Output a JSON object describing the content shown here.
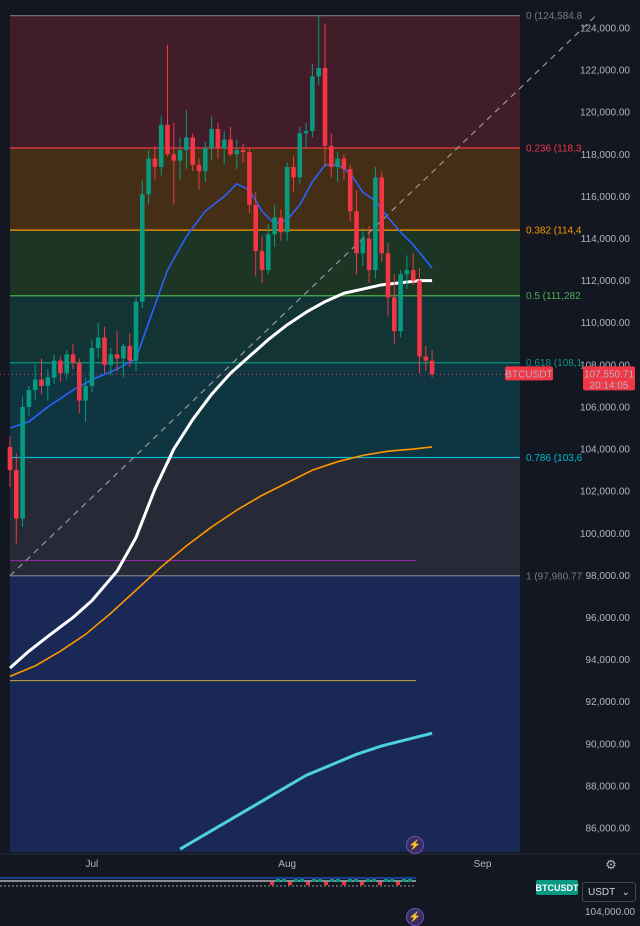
{
  "symbol": "BTCUSDT",
  "currency": "USDT",
  "last_price": "107,550.71",
  "countdown": "20:14:05",
  "bottom_price_label": "104,000.00",
  "colors": {
    "background": "#131722",
    "up": "#089981",
    "down": "#f23645",
    "ema_fast": "#2962ff",
    "ema_mid": "#ffffff",
    "ema_slow": "#ff9800",
    "ema_long": "#4dd0e1"
  },
  "icons": [
    "lightning-icon",
    "settings-gear-icon",
    "chevron-down-icon"
  ],
  "chart_data": {
    "type": "candlestick",
    "y_axis": {
      "min": 85000,
      "max": 125000,
      "ticks": [
        86000,
        88000,
        90000,
        92000,
        94000,
        96000,
        98000,
        100000,
        102000,
        104000,
        106000,
        108000,
        110000,
        112000,
        114000,
        116000,
        118000,
        120000,
        122000,
        124000
      ],
      "tick_labels": [
        "86,000.00",
        "88,000.00",
        "90,000.00",
        "92,000.00",
        "94,000.00",
        "96,000.00",
        "98,000.00",
        "100,000.00",
        "102,000.00",
        "104,000.00",
        "106,000.00",
        "108,000.00",
        "110,000.00",
        "112,000.00",
        "114,000.00",
        "116,000.00",
        "118,000.00",
        "120,000.00",
        "122,000.00",
        "124,000.00"
      ]
    },
    "x_axis": {
      "labels": [
        {
          "text": "Jul",
          "index": 13
        },
        {
          "text": "Aug",
          "index": 44
        },
        {
          "text": "Sep",
          "index": 75
        }
      ],
      "bars": 77
    },
    "fib_levels": [
      {
        "label": "0 (124,584.8",
        "price": 124584.8,
        "color": "#787b86",
        "fill": "#4a1f2a"
      },
      {
        "label": "0.236 (118,3",
        "price": 118300,
        "color": "#f23645",
        "fill": "#4d3414"
      },
      {
        "label": "0.382 (114,4",
        "price": 114400,
        "color": "#ff9800",
        "fill": "#1f3b24"
      },
      {
        "label": "0.5 (111,282",
        "price": 111282,
        "color": "#4caf50",
        "fill": "#143a37"
      },
      {
        "label": "0.618 (108,1",
        "price": 108100,
        "color": "#089981",
        "fill": "#0f3b45"
      },
      {
        "label": "0.786 (103,6",
        "price": 103600,
        "color": "#00bcd4",
        "fill": "#2a2e39"
      },
      {
        "label": "1 (97,980.77",
        "price": 97980.77,
        "color": "#787b86",
        "fill": "#1c2b5e"
      }
    ],
    "extra_lines": [
      {
        "price": 98700,
        "color": "#9c27b0"
      },
      {
        "price": 93000,
        "color": "#c8a84b"
      }
    ],
    "trend_line": {
      "from": [
        0,
        97981
      ],
      "to": [
        93,
        124585
      ],
      "color": "#9598a1"
    },
    "ohlc": [
      [
        104100,
        104600,
        102200,
        103000
      ],
      [
        103000,
        103800,
        99500,
        100700
      ],
      [
        100700,
        106500,
        100300,
        106000
      ],
      [
        106000,
        107000,
        105600,
        106800
      ],
      [
        106800,
        108000,
        106300,
        107300
      ],
      [
        107300,
        108300,
        106600,
        107000
      ],
      [
        107000,
        107800,
        106300,
        107400
      ],
      [
        107400,
        108500,
        107100,
        108200
      ],
      [
        108200,
        108400,
        107200,
        107600
      ],
      [
        107600,
        108700,
        107300,
        108500
      ],
      [
        108500,
        109000,
        107800,
        108100
      ],
      [
        108100,
        108300,
        105700,
        106300
      ],
      [
        106300,
        107400,
        105300,
        107000
      ],
      [
        107000,
        109200,
        106700,
        108800
      ],
      [
        108800,
        110000,
        108300,
        109300
      ],
      [
        109300,
        109800,
        107600,
        108000
      ],
      [
        108000,
        108800,
        107500,
        108500
      ],
      [
        108500,
        109600,
        107700,
        108300
      ],
      [
        108300,
        109000,
        107400,
        108900
      ],
      [
        108900,
        109500,
        107900,
        108200
      ],
      [
        108200,
        111200,
        107700,
        111000
      ],
      [
        111000,
        116800,
        110700,
        116100
      ],
      [
        116100,
        118200,
        115600,
        117800
      ],
      [
        117800,
        118400,
        116800,
        117400
      ],
      [
        117400,
        119800,
        117000,
        119400
      ],
      [
        119400,
        123200,
        117900,
        118000
      ],
      [
        118000,
        119500,
        115600,
        117700
      ],
      [
        117700,
        118800,
        116800,
        118200
      ],
      [
        118200,
        120100,
        117300,
        118800
      ],
      [
        118800,
        119000,
        117200,
        117500
      ],
      [
        117500,
        117800,
        116300,
        117200
      ],
      [
        117200,
        118600,
        116700,
        118300
      ],
      [
        118300,
        119800,
        117700,
        119200
      ],
      [
        119200,
        119500,
        117800,
        118300
      ],
      [
        118300,
        119100,
        117500,
        118700
      ],
      [
        118700,
        119300,
        117900,
        118000
      ],
      [
        118000,
        118700,
        117300,
        118200
      ],
      [
        118200,
        118500,
        117600,
        118100
      ],
      [
        118100,
        118300,
        115200,
        115600
      ],
      [
        115600,
        116200,
        112200,
        113400
      ],
      [
        113400,
        114100,
        111900,
        112500
      ],
      [
        112500,
        114700,
        112300,
        114200
      ],
      [
        114200,
        115600,
        113600,
        115000
      ],
      [
        115000,
        115400,
        113900,
        114300
      ],
      [
        114300,
        117600,
        113900,
        117400
      ],
      [
        117400,
        117900,
        116200,
        116900
      ],
      [
        116900,
        119300,
        116600,
        119000
      ],
      [
        119000,
        119500,
        118300,
        119100
      ],
      [
        119100,
        122300,
        118800,
        121700
      ],
      [
        121700,
        124600,
        121300,
        122100
      ],
      [
        122100,
        124200,
        117400,
        118400
      ],
      [
        118400,
        119000,
        116900,
        117400
      ],
      [
        117400,
        118100,
        116700,
        117800
      ],
      [
        117800,
        118000,
        116800,
        117300
      ],
      [
        117300,
        117500,
        114800,
        115300
      ],
      [
        115300,
        116300,
        112300,
        113300
      ],
      [
        113300,
        114500,
        112700,
        114000
      ],
      [
        114000,
        114600,
        111900,
        112500
      ],
      [
        112500,
        117400,
        112100,
        116900
      ],
      [
        116900,
        117200,
        112900,
        113300
      ],
      [
        113300,
        113800,
        110300,
        111200
      ],
      [
        111200,
        112300,
        109000,
        109600
      ],
      [
        109600,
        112500,
        109300,
        112300
      ],
      [
        112300,
        113200,
        111600,
        112500
      ],
      [
        112500,
        113300,
        111800,
        112000
      ],
      [
        112000,
        112600,
        107600,
        108400
      ],
      [
        108400,
        108900,
        107700,
        108200
      ],
      [
        108200,
        108700,
        107400,
        107550
      ]
    ],
    "ema_fast": [
      [
        0,
        105000
      ],
      [
        3,
        105300
      ],
      [
        6,
        106000
      ],
      [
        10,
        106800
      ],
      [
        13,
        107300
      ],
      [
        17,
        107800
      ],
      [
        20,
        108300
      ],
      [
        22,
        110000
      ],
      [
        25,
        112500
      ],
      [
        28,
        114100
      ],
      [
        31,
        115300
      ],
      [
        34,
        116000
      ],
      [
        36,
        116600
      ],
      [
        38,
        116300
      ],
      [
        40,
        115300
      ],
      [
        42,
        114700
      ],
      [
        44,
        114900
      ],
      [
        46,
        115600
      ],
      [
        48,
        116700
      ],
      [
        50,
        117500
      ],
      [
        52,
        117500
      ],
      [
        54,
        117100
      ],
      [
        56,
        116200
      ],
      [
        58,
        115800
      ],
      [
        60,
        115000
      ],
      [
        62,
        114300
      ],
      [
        64,
        113700
      ],
      [
        67,
        112600
      ]
    ],
    "ema_mid": [
      [
        0,
        93600
      ],
      [
        3,
        94400
      ],
      [
        6,
        95100
      ],
      [
        10,
        96000
      ],
      [
        13,
        96800
      ],
      [
        17,
        98200
      ],
      [
        20,
        99800
      ],
      [
        23,
        102100
      ],
      [
        26,
        104000
      ],
      [
        29,
        105400
      ],
      [
        32,
        106600
      ],
      [
        35,
        107600
      ],
      [
        38,
        108400
      ],
      [
        41,
        109200
      ],
      [
        44,
        109900
      ],
      [
        47,
        110500
      ],
      [
        50,
        111000
      ],
      [
        53,
        111400
      ],
      [
        56,
        111600
      ],
      [
        59,
        111800
      ],
      [
        62,
        111900
      ],
      [
        65,
        112000
      ],
      [
        67,
        112000
      ]
    ],
    "ema_slow": [
      [
        0,
        93200
      ],
      [
        4,
        93700
      ],
      [
        8,
        94400
      ],
      [
        12,
        95200
      ],
      [
        16,
        96200
      ],
      [
        20,
        97300
      ],
      [
        24,
        98400
      ],
      [
        28,
        99400
      ],
      [
        32,
        100300
      ],
      [
        36,
        101100
      ],
      [
        40,
        101800
      ],
      [
        44,
        102400
      ],
      [
        48,
        103000
      ],
      [
        52,
        103400
      ],
      [
        56,
        103700
      ],
      [
        60,
        103900
      ],
      [
        64,
        104000
      ],
      [
        67,
        104100
      ]
    ],
    "ema_long": [
      [
        27,
        85000
      ],
      [
        31,
        85700
      ],
      [
        35,
        86400
      ],
      [
        39,
        87100
      ],
      [
        43,
        87800
      ],
      [
        47,
        88500
      ],
      [
        51,
        89000
      ],
      [
        55,
        89500
      ],
      [
        59,
        89900
      ],
      [
        63,
        90200
      ],
      [
        67,
        90500
      ]
    ]
  }
}
